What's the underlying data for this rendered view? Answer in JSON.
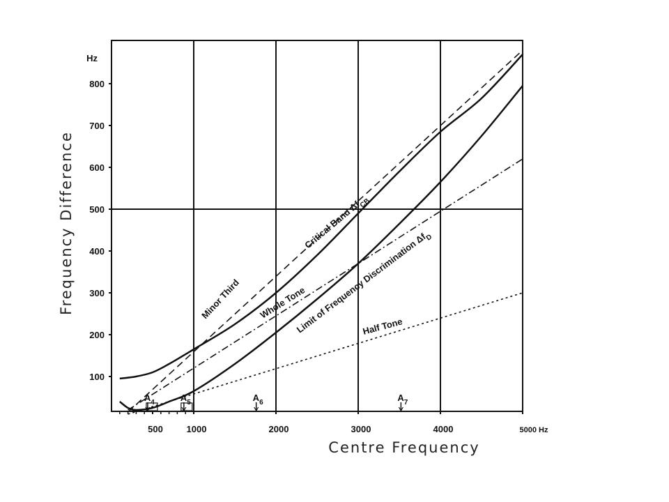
{
  "chart_data": {
    "type": "line",
    "xlabel": "Centre Frequency",
    "ylabel": "Frequency Difference",
    "y_unit": "Hz",
    "xlim": [
      0,
      5000
    ],
    "ylim": [
      0,
      900
    ],
    "x_ticks": [
      "500",
      "1000",
      "2000",
      "3000",
      "4000",
      "5000 Hz"
    ],
    "y_ticks": [
      "100",
      "200",
      "300",
      "400",
      "500",
      "600",
      "700",
      "800"
    ],
    "grid": true,
    "series": [
      {
        "name": "Critical Band Δf",
        "sub": "CB",
        "style": "solid",
        "x": [
          100,
          300,
          500,
          700,
          1000,
          1500,
          2000,
          2500,
          3000,
          3500,
          4000,
          4500,
          5000
        ],
        "y": [
          95,
          100,
          110,
          130,
          165,
          225,
          300,
          390,
          490,
          590,
          685,
          765,
          870
        ]
      },
      {
        "name": "Limit of Frequency  Discrimination Δf",
        "sub": "D",
        "style": "solid",
        "x": [
          100,
          200,
          300,
          500,
          700,
          1000,
          1500,
          2000,
          2500,
          3000,
          3500,
          4000,
          4500,
          5000
        ],
        "y": [
          40,
          25,
          20,
          25,
          40,
          65,
          130,
          205,
          285,
          370,
          465,
          565,
          675,
          795
        ]
      },
      {
        "name": "Minor Third",
        "style": "dashed",
        "x": [
          200,
          5000
        ],
        "y": [
          15,
          880
        ]
      },
      {
        "name": "Whole Tone",
        "style": "dashdot",
        "x": [
          200,
          5000
        ],
        "y": [
          20,
          620
        ]
      },
      {
        "name": "Half Tone",
        "style": "dotted",
        "x": [
          200,
          5000
        ],
        "y": [
          10,
          300
        ]
      }
    ],
    "markers": [
      {
        "label": "A",
        "sub": "4",
        "x": 440
      },
      {
        "label": "A",
        "sub": "5",
        "x": 880
      },
      {
        "label": "A",
        "sub": "6",
        "x": 1760
      },
      {
        "label": "A",
        "sub": "7",
        "x": 3520
      }
    ]
  }
}
